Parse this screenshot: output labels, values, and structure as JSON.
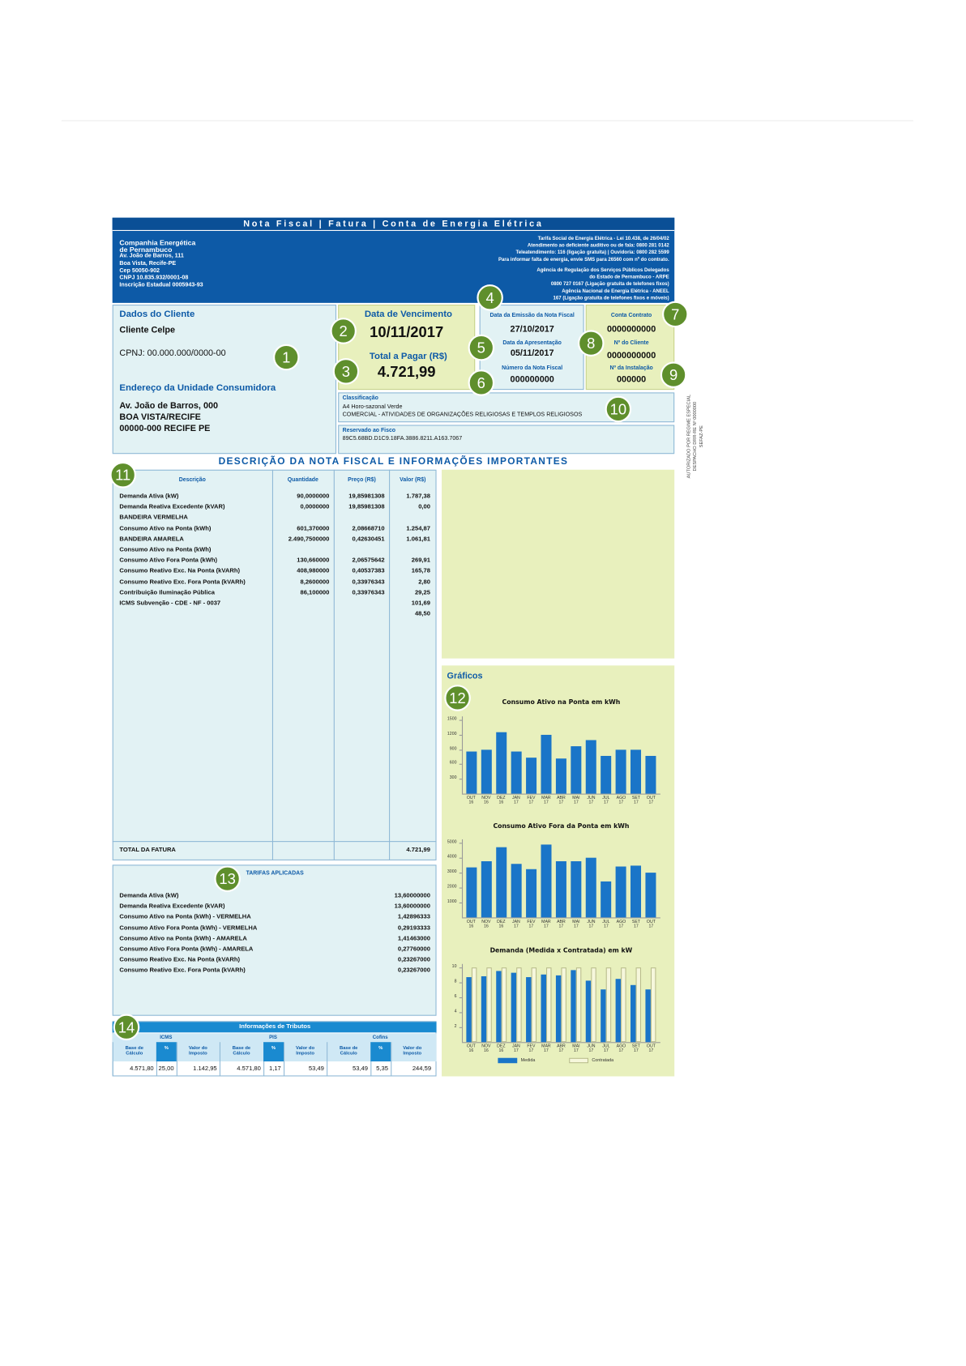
{
  "header": {
    "title": "Nota Fiscal | Fatura | Conta de Energia Elétrica",
    "company": [
      "Companhia Energética",
      "de Pernambuco",
      "Av. João de Barros, 111",
      "Boa Vista, Recife-PE",
      "Cep 50050-902",
      "CNPJ 10.835.932/0001-08",
      "Inscrição Estadual 0005943-93"
    ],
    "contacts": [
      "Tarifa Social de Energia Elétrica - Lei 10.438, de 26/04/02",
      "Atendimento ao deficiente auditivo ou de fala: 0800 281 0142",
      "Teleatendimento: 116 (ligação gratuita) | Ouvidoria: 0800 282 5599",
      "Para informar falta de energia, envie SMS para 26560 com nº do contrato.",
      "Agência de Regulação dos Serviços Públicos Delegados",
      "do Estado de Pernambuco - ARPE",
      "0800 727 0167 (Ligação gratuita de telefones fixos)",
      "Agência Nacional de Energia Elétrica - ANEEL",
      "167 (Ligação gratuita de telefones fixos e móveis)"
    ]
  },
  "client": {
    "title": "Dados do Cliente",
    "name": "Cliente Celpe",
    "cnpj": "CPNJ: 00.000.000/0000-00",
    "address_title": "Endereço da Unidade Consumidora",
    "address": [
      "Av. João de Barros, 000",
      "BOA VISTA/RECIFE",
      "00000-000 RECIFE PE"
    ]
  },
  "payment": {
    "due_label": "Data de Vencimento",
    "due_date": "10/11/2017",
    "total_label": "Total a Pagar (R$)",
    "total": "4.721,99"
  },
  "dates": {
    "issue_label": "Data da Emissão da Nota Fiscal",
    "issue_date": "27/10/2017",
    "presentation_label": "Data da Apresentação",
    "presentation_date": "05/11/2017",
    "number_label": "Número da Nota Fiscal",
    "number": "000000000"
  },
  "contract": {
    "contract_label": "Conta Contrato",
    "contract": "0000000000",
    "client_no_label": "Nº do Cliente",
    "client_no": "0000000000",
    "installation_label": "Nº da Instalação",
    "installation": "000000"
  },
  "classification": {
    "label": "Classificação",
    "lines": [
      "A4 Horo-sazonal Verde",
      "COMERCIAL - ATIVIDADES DE ORGANIZAÇÕES RELIGIOSAS E TEMPLOS RELIGIOSOS"
    ]
  },
  "fisco": {
    "label": "Reservado ao Fisco",
    "code": "89C5.68BD.D1C9.18FA.3886.8211.A163.7067"
  },
  "authorization": [
    "AUTORIZADO POR REGIME ESPECIAL",
    "DESPACHO DRR-RE Nº 0000000",
    "SEFAZ-PE"
  ],
  "description": {
    "title": "DESCRIÇÃO DA NOTA FISCAL E INFORMAÇÕES IMPORTANTES",
    "columns": [
      "Descrição",
      "Quantidade",
      "Preço (R$)",
      "Valor (R$)"
    ],
    "rows": [
      [
        "Demanda Ativa (kW)",
        "90,0000000",
        "19,85981308",
        "1.787,38"
      ],
      [
        "Demanda Reativa Excedente (kVAR)",
        "0,0000000",
        "19,85981308",
        "0,00"
      ],
      [
        "BANDEIRA VERMELHA",
        null,
        null,
        null
      ],
      [
        "Consumo Ativo na Ponta (kWh)",
        "601,370000",
        "2,08668710",
        "1.254,87"
      ],
      [
        "BANDEIRA AMARELA",
        "2.490,7500000",
        "0,42630451",
        "1.061,81"
      ],
      [
        "Consumo Ativo na Ponta (kWh)",
        null,
        null,
        null
      ],
      [
        "Consumo Ativo Fora Ponta (kWh)",
        "130,660000",
        "2,06575642",
        "269,91"
      ],
      [
        "Consumo Reativo Exc. Na Ponta (kVARh)",
        "408,980000",
        "0,40537383",
        "165,78"
      ],
      [
        "Consumo Reativo Exc. Fora Ponta (kVARh)",
        "8,2600000",
        "0,33976343",
        "2,80"
      ],
      [
        "Contribuição Iluminação Pública",
        "86,100000",
        "0,33976343",
        "29,25"
      ],
      [
        "ICMS Subvenção - CDE - NF - 0037",
        null,
        null,
        "101,69"
      ],
      [
        null,
        null,
        null,
        "48,50"
      ]
    ],
    "total_label": "TOTAL DA FATURA",
    "total": "4.721,99"
  },
  "tariffs": {
    "title": "TARIFAS APLICADAS",
    "rows": [
      [
        "Demanda Ativa (kW)",
        "13,60000000"
      ],
      [
        "Demanda Reativa Excedente (kVAR)",
        "13,60000000"
      ],
      [
        "Consumo Ativo na Ponta (kWh) - VERMELHA",
        "1,42896333"
      ],
      [
        "Consumo Ativo Fora Ponta (kWh) - VERMELHA",
        "0,29193333"
      ],
      [
        "Consumo Ativo na Ponta (kWh) - AMARELA",
        "1,41463000"
      ],
      [
        "Consumo Ativo Fora Ponta (kWh) - AMARELA",
        "0,27760000"
      ],
      [
        "Consumo Reativo Exc. Na Ponta (kVARh)",
        "0,23267000"
      ],
      [
        "Consumo Reativo Exc. Fora Ponta (kVARh)",
        "0,23267000"
      ]
    ]
  },
  "taxes": {
    "title": "Informações de Tributos",
    "groups": [
      "ICMS",
      "PIS",
      "Cofins"
    ],
    "columns": [
      "Base de Cálculo",
      "%",
      "Valor do Imposto"
    ],
    "values": [
      [
        "4.571,80",
        "25,00",
        "1.142,95"
      ],
      [
        "4.571,80",
        "1,17",
        "53,49"
      ],
      [
        "53,49",
        "5,35",
        "244,59"
      ]
    ]
  },
  "charts_title": "Gráficos",
  "markers": [
    1,
    2,
    3,
    4,
    5,
    6,
    7,
    8,
    9,
    10,
    11,
    12,
    13,
    14
  ],
  "chart_data": [
    {
      "type": "bar",
      "title": "Consumo Ativo na Ponta em kWh",
      "categories": [
        "OUT 16",
        "NOV 16",
        "DEZ 16",
        "JAN 17",
        "FEV 17",
        "MAR 17",
        "ABR 17",
        "MAI 17",
        "JUN 17",
        "JUL 17",
        "AGO 17",
        "SET 17",
        "OUT 17"
      ],
      "values": [
        865,
        900,
        1253,
        865,
        724,
        1200,
        706,
        970,
        1094,
        776,
        900,
        900,
        776
      ],
      "color": "#1a75c8",
      "ylim": [
        0,
        1500
      ],
      "yticks": [
        300,
        600,
        900,
        1200,
        1500
      ]
    },
    {
      "type": "bar",
      "title": "Consumo Ativo Fora da Ponta em kWh",
      "categories": [
        "OUT 16",
        "NOV 16",
        "DEZ 16",
        "JAN 17",
        "FEV 17",
        "MAR 17",
        "ABR 17",
        "MAI 17",
        "JUN 17",
        "JUL 17",
        "AGO 17",
        "SET 17",
        "OUT 17"
      ],
      "values": [
        3350,
        3760,
        4700,
        3590,
        3240,
        4880,
        3760,
        3760,
        4000,
        2410,
        3410,
        3470,
        3000
      ],
      "color": "#1a75c8",
      "ylim": [
        0,
        5000
      ],
      "yticks": [
        1000,
        2000,
        3000,
        4000,
        5000
      ]
    },
    {
      "type": "grouped_bar",
      "title": "Demanda (Medida x Contratada) em kW",
      "categories": [
        "OUT 16",
        "NOV 16",
        "DEZ 16",
        "JAN 17",
        "FEV 17",
        "MAR 17",
        "ABR 17",
        "MAI 17",
        "JUN 17",
        "JUL 17",
        "AGO 17",
        "SET 17",
        "OUT 17"
      ],
      "series": [
        {
          "name": "Medida",
          "color": "#1a75c8",
          "values": [
            8.7,
            8.8,
            9.5,
            9.3,
            8.7,
            9.1,
            8.9,
            9.6,
            8.2,
            7.1,
            8.5,
            7.6,
            7.1
          ]
        },
        {
          "name": "Contratada",
          "color": "#f6f7dc",
          "values": [
            10,
            10,
            10,
            10,
            10,
            10,
            10,
            10,
            10,
            10,
            10,
            10,
            10
          ]
        }
      ],
      "ylim": [
        0,
        10
      ],
      "yticks": [
        2,
        4,
        6,
        8,
        10
      ]
    }
  ]
}
